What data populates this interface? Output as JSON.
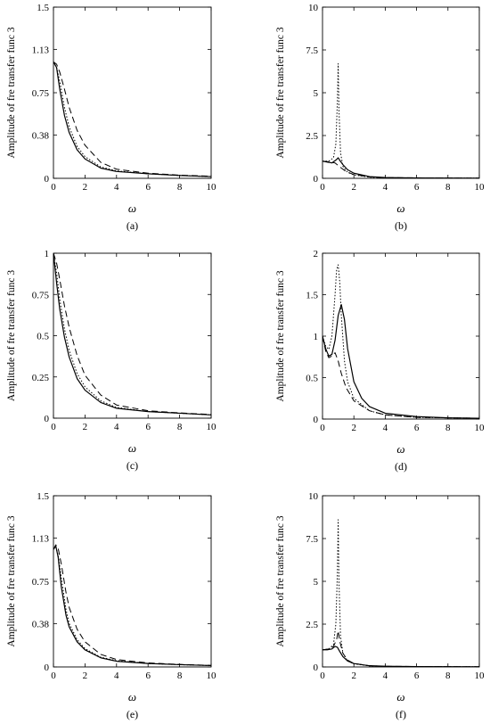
{
  "figure": {
    "panel_labels": [
      "(a)",
      "(b)",
      "(c)",
      "(d)",
      "(e)",
      "(f)"
    ]
  },
  "chart_data": [
    {
      "type": "line",
      "panel": "(a)",
      "xlabel": "ω",
      "ylabel": "Amplitude of fre transfer func 3",
      "xlim": [
        0,
        10
      ],
      "ylim": [
        0,
        1.5
      ],
      "xticks": [
        "0",
        "2",
        "4",
        "6",
        "8",
        "10"
      ],
      "yticks": [
        "0",
        "0.38",
        "0.75",
        "1.13",
        "1.5"
      ],
      "grid": false,
      "series": [
        {
          "style": "solid",
          "x": [
            0,
            0.2,
            0.4,
            0.7,
            1.0,
            1.5,
            2.0,
            3.0,
            4.0,
            6.0,
            8.0,
            10.0
          ],
          "y": [
            1.02,
            0.97,
            0.78,
            0.55,
            0.4,
            0.25,
            0.17,
            0.09,
            0.06,
            0.04,
            0.025,
            0.015
          ]
        },
        {
          "style": "dotted",
          "x": [
            0,
            0.2,
            0.4,
            0.7,
            1.0,
            1.5,
            2.0,
            3.0,
            4.0,
            6.0,
            8.0,
            10.0
          ],
          "y": [
            1.02,
            0.97,
            0.85,
            0.62,
            0.45,
            0.28,
            0.19,
            0.1,
            0.065,
            0.04,
            0.025,
            0.015
          ]
        },
        {
          "style": "dashed",
          "x": [
            0,
            0.2,
            0.4,
            0.7,
            1.0,
            1.5,
            2.0,
            3.0,
            4.0,
            6.0,
            8.0,
            10.0
          ],
          "y": [
            1.02,
            1.0,
            0.93,
            0.78,
            0.62,
            0.42,
            0.29,
            0.14,
            0.08,
            0.045,
            0.028,
            0.018
          ]
        }
      ]
    },
    {
      "type": "line",
      "panel": "(b)",
      "xlabel": "ω",
      "ylabel": "Amplitude of fre transfer func 3",
      "xlim": [
        0,
        10
      ],
      "ylim": [
        0,
        10
      ],
      "xticks": [
        "0",
        "2",
        "4",
        "6",
        "8",
        "10"
      ],
      "yticks": [
        "0",
        "2.5",
        "5",
        "7.5",
        "10"
      ],
      "grid": false,
      "series": [
        {
          "style": "solid",
          "x": [
            0,
            0.3,
            0.6,
            0.9,
            1.0,
            1.1,
            1.3,
            1.6,
            2.0,
            3.0,
            4.0,
            6.0,
            10.0
          ],
          "y": [
            1.0,
            0.95,
            0.9,
            1.1,
            1.2,
            1.05,
            0.8,
            0.5,
            0.3,
            0.1,
            0.05,
            0.02,
            0.01
          ]
        },
        {
          "style": "dotted",
          "x": [
            0,
            0.4,
            0.7,
            0.85,
            0.95,
            1.0,
            1.05,
            1.15,
            1.3,
            1.6,
            2.0,
            3.0,
            4.0,
            10.0
          ],
          "y": [
            1.0,
            1.0,
            1.2,
            2.0,
            4.5,
            6.7,
            4.0,
            1.5,
            0.7,
            0.35,
            0.2,
            0.07,
            0.03,
            0.01
          ]
        },
        {
          "style": "dashed",
          "x": [
            0,
            0.4,
            0.8,
            1.0,
            1.2,
            1.5,
            2.0,
            3.0,
            4.0,
            10.0
          ],
          "y": [
            1.0,
            0.97,
            0.9,
            0.75,
            0.6,
            0.4,
            0.22,
            0.08,
            0.04,
            0.01
          ]
        }
      ]
    },
    {
      "type": "line",
      "panel": "(c)",
      "xlabel": "ω",
      "ylabel": "Amplitude of fre transfer func 3",
      "xlim": [
        0,
        10
      ],
      "ylim": [
        0,
        1
      ],
      "xticks": [
        "0",
        "2",
        "4",
        "6",
        "8",
        "10"
      ],
      "yticks": [
        "0",
        "0.25",
        "0.5",
        "0.75",
        "1"
      ],
      "grid": false,
      "series": [
        {
          "style": "solid",
          "x": [
            0,
            0.2,
            0.4,
            0.7,
            1.0,
            1.5,
            2.0,
            3.0,
            4.0,
            6.0,
            8.0,
            10.0
          ],
          "y": [
            1.0,
            0.82,
            0.66,
            0.49,
            0.37,
            0.24,
            0.17,
            0.095,
            0.06,
            0.04,
            0.03,
            0.02
          ]
        },
        {
          "style": "dotted",
          "x": [
            0,
            0.2,
            0.4,
            0.7,
            1.0,
            1.5,
            2.0,
            3.0,
            4.0,
            6.0,
            8.0,
            10.0
          ],
          "y": [
            1.0,
            0.88,
            0.72,
            0.54,
            0.41,
            0.27,
            0.19,
            0.105,
            0.065,
            0.04,
            0.03,
            0.02
          ]
        },
        {
          "style": "dashed",
          "x": [
            0,
            0.2,
            0.4,
            0.7,
            1.0,
            1.5,
            2.0,
            3.0,
            4.0,
            6.0,
            8.0,
            10.0
          ],
          "y": [
            1.0,
            0.94,
            0.84,
            0.68,
            0.55,
            0.38,
            0.26,
            0.14,
            0.08,
            0.045,
            0.032,
            0.022
          ]
        }
      ]
    },
    {
      "type": "line",
      "panel": "(d)",
      "xlabel": "ω",
      "ylabel": "Amplitude of fre transfer func 3",
      "xlim": [
        0,
        10
      ],
      "ylim": [
        0,
        2
      ],
      "xticks": [
        "0",
        "2",
        "4",
        "6",
        "8",
        "10"
      ],
      "yticks": [
        "0",
        "0.5",
        "1",
        "1.5",
        "2"
      ],
      "grid": false,
      "series": [
        {
          "style": "solid",
          "x": [
            0,
            0.2,
            0.4,
            0.6,
            0.8,
            1.0,
            1.2,
            1.4,
            1.6,
            2.0,
            2.5,
            3.0,
            4.0,
            6.0,
            8.0,
            10.0
          ],
          "y": [
            1.0,
            0.85,
            0.76,
            0.78,
            0.95,
            1.25,
            1.38,
            1.2,
            0.85,
            0.45,
            0.25,
            0.15,
            0.07,
            0.03,
            0.015,
            0.01
          ]
        },
        {
          "style": "dotted",
          "x": [
            0,
            0.2,
            0.4,
            0.6,
            0.8,
            0.9,
            1.0,
            1.1,
            1.2,
            1.4,
            1.6,
            2.0,
            3.0,
            4.0,
            6.0,
            10.0
          ],
          "y": [
            1.0,
            0.88,
            0.84,
            1.0,
            1.5,
            1.8,
            1.86,
            1.65,
            1.25,
            0.7,
            0.45,
            0.25,
            0.1,
            0.05,
            0.02,
            0.01
          ]
        },
        {
          "style": "dashed",
          "x": [
            0,
            0.2,
            0.4,
            0.6,
            0.8,
            1.0,
            1.2,
            1.5,
            2.0,
            3.0,
            4.0,
            6.0,
            10.0
          ],
          "y": [
            1.0,
            0.82,
            0.74,
            0.76,
            0.8,
            0.7,
            0.55,
            0.38,
            0.22,
            0.1,
            0.05,
            0.02,
            0.01
          ]
        }
      ]
    },
    {
      "type": "line",
      "panel": "(e)",
      "xlabel": "ω",
      "ylabel": "Amplitude of fre transfer func 3",
      "xlim": [
        0,
        10
      ],
      "ylim": [
        0,
        1.5
      ],
      "xticks": [
        "0",
        "2",
        "4",
        "6",
        "8",
        "10"
      ],
      "yticks": [
        "0",
        "0.38",
        "0.75",
        "1.13",
        "1.5"
      ],
      "grid": false,
      "series": [
        {
          "style": "solid",
          "x": [
            0,
            0.15,
            0.3,
            0.5,
            0.8,
            1.0,
            1.5,
            2.0,
            3.0,
            4.0,
            6.0,
            8.0,
            10.0
          ],
          "y": [
            1.03,
            1.06,
            0.96,
            0.7,
            0.45,
            0.35,
            0.22,
            0.15,
            0.08,
            0.05,
            0.03,
            0.02,
            0.012
          ]
        },
        {
          "style": "dotted",
          "x": [
            0,
            0.15,
            0.3,
            0.5,
            0.8,
            1.0,
            1.5,
            2.0,
            3.0,
            4.0,
            6.0,
            8.0,
            10.0
          ],
          "y": [
            1.03,
            1.05,
            0.98,
            0.78,
            0.5,
            0.38,
            0.24,
            0.16,
            0.085,
            0.055,
            0.03,
            0.02,
            0.012
          ]
        },
        {
          "style": "dashed",
          "x": [
            0,
            0.15,
            0.3,
            0.5,
            0.8,
            1.0,
            1.5,
            2.0,
            3.0,
            4.0,
            6.0,
            8.0,
            10.0
          ],
          "y": [
            1.03,
            1.07,
            1.04,
            0.9,
            0.65,
            0.52,
            0.33,
            0.22,
            0.11,
            0.065,
            0.035,
            0.022,
            0.014
          ]
        }
      ]
    },
    {
      "type": "line",
      "panel": "(f)",
      "xlabel": "ω",
      "ylabel": "Amplitude of fre transfer func 3",
      "xlim": [
        0,
        10
      ],
      "ylim": [
        0,
        10
      ],
      "xticks": [
        "0",
        "2",
        "4",
        "6",
        "8",
        "10"
      ],
      "yticks": [
        "0",
        "2.5",
        "5",
        "7.5",
        "10"
      ],
      "grid": false,
      "series": [
        {
          "style": "solid",
          "x": [
            0,
            0.3,
            0.6,
            0.8,
            0.95,
            1.1,
            1.3,
            1.6,
            2.0,
            3.0,
            4.0,
            6.0,
            10.0
          ],
          "y": [
            1.0,
            1.0,
            1.05,
            1.2,
            1.15,
            0.9,
            0.6,
            0.35,
            0.2,
            0.07,
            0.04,
            0.02,
            0.01
          ]
        },
        {
          "style": "dotted",
          "x": [
            0,
            0.4,
            0.7,
            0.85,
            0.95,
            1.0,
            1.05,
            1.15,
            1.3,
            1.6,
            2.0,
            3.0,
            4.0,
            10.0
          ],
          "y": [
            1.0,
            1.05,
            1.3,
            2.5,
            5.5,
            8.6,
            5.0,
            1.8,
            0.8,
            0.35,
            0.18,
            0.06,
            0.03,
            0.01
          ]
        },
        {
          "style": "dashed",
          "x": [
            0,
            0.4,
            0.7,
            0.9,
            1.0,
            1.1,
            1.3,
            1.6,
            2.0,
            3.0,
            4.0,
            10.0
          ],
          "y": [
            1.0,
            1.05,
            1.2,
            1.6,
            2.1,
            1.5,
            0.8,
            0.4,
            0.2,
            0.07,
            0.035,
            0.01
          ]
        }
      ]
    }
  ]
}
